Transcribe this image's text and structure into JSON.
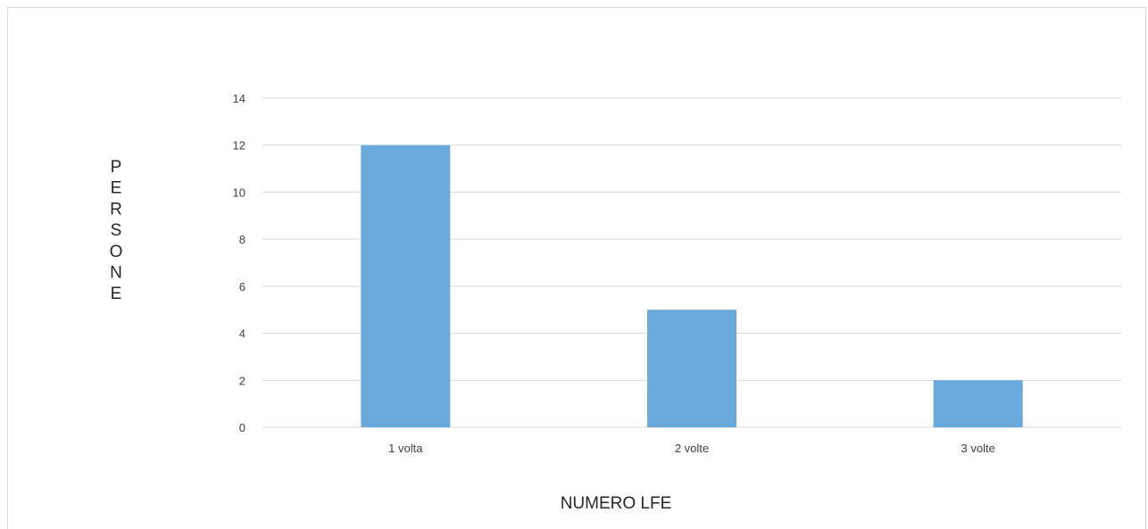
{
  "chart_data": {
    "type": "bar",
    "title": "",
    "categories": [
      "1 volta",
      "2 volte",
      "3 volte"
    ],
    "values": [
      12,
      5,
      2
    ],
    "xlabel": "NUMERO LFE",
    "ylabel": "PERSONE",
    "ylim": [
      0,
      14
    ],
    "yticks": [
      0,
      2,
      4,
      6,
      8,
      10,
      12,
      14
    ],
    "grid": true,
    "legend": "none",
    "bar_color": "#6aa9dc",
    "grid_color": "#d9d9d9"
  }
}
